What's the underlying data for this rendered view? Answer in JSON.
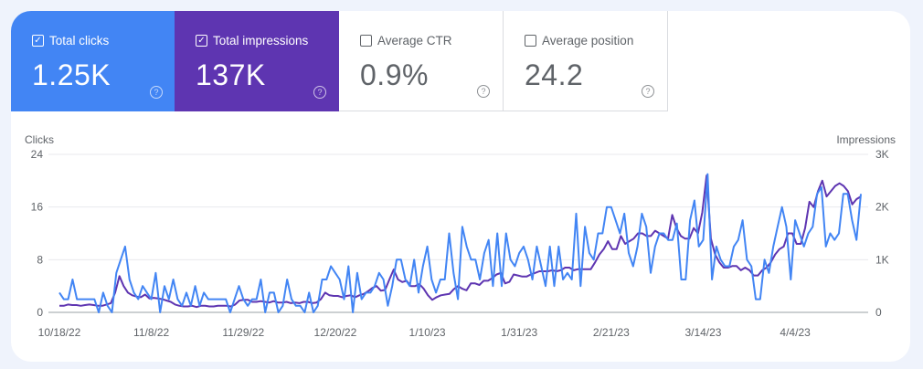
{
  "metrics": [
    {
      "label": "Total clicks",
      "value": "1.25K",
      "checked": true
    },
    {
      "label": "Total impressions",
      "value": "137K",
      "checked": true
    },
    {
      "label": "Average CTR",
      "value": "0.9%",
      "checked": false
    },
    {
      "label": "Average position",
      "value": "24.2",
      "checked": false
    }
  ],
  "icons": {
    "checked": "checkbox-checked-icon",
    "unchecked": "checkbox-empty-icon",
    "help": "help-circle-icon"
  },
  "colors": {
    "clicks": "#4285f4",
    "impressions": "#5e35b1"
  },
  "chart_data": {
    "type": "line",
    "y_left_label": "Clicks",
    "y_right_label": "Impressions",
    "y_left_ticks": [
      "0",
      "8",
      "16",
      "24"
    ],
    "y_left_range": [
      0,
      24
    ],
    "y_right_ticks": [
      "0",
      "1K",
      "2K",
      "3K"
    ],
    "y_right_range": [
      0,
      3000
    ],
    "x_ticks": [
      "10/18/22",
      "11/8/22",
      "11/29/22",
      "12/20/22",
      "1/10/23",
      "1/31/23",
      "2/21/23",
      "3/14/23",
      "4/4/23"
    ],
    "x_tick_interval_days": 21,
    "grid": true,
    "series": [
      {
        "name": "Clicks",
        "axis": "left",
        "values": [
          3,
          2,
          2,
          5,
          2,
          2,
          2,
          2,
          2,
          0,
          3,
          1,
          0,
          6,
          8,
          10,
          5,
          3,
          2,
          4,
          3,
          2,
          6,
          0,
          4,
          2,
          5,
          2,
          1,
          3,
          1,
          4,
          1,
          3,
          2,
          2,
          2,
          2,
          2,
          0,
          2,
          4,
          2,
          1,
          2,
          2,
          5,
          0,
          3,
          3,
          0,
          1,
          5,
          2,
          1,
          1,
          0,
          3,
          0,
          1,
          5,
          5,
          7,
          6,
          5,
          2,
          7,
          0,
          6,
          2,
          3,
          3,
          4,
          6,
          5,
          1,
          4,
          8,
          8,
          5,
          4,
          8,
          3,
          7,
          10,
          5,
          3,
          5,
          5,
          12,
          6,
          2,
          13,
          10,
          8,
          8,
          5,
          9,
          11,
          4,
          12,
          4,
          12,
          8,
          7,
          9,
          10,
          8,
          5,
          10,
          7,
          4,
          10,
          4,
          10,
          5,
          6,
          5,
          15,
          4,
          13,
          9,
          8,
          12,
          12,
          16,
          16,
          14,
          12,
          15,
          9,
          7,
          10,
          15,
          13,
          6,
          10,
          12,
          12,
          11,
          11,
          13.5,
          5,
          5,
          14,
          17,
          10,
          11,
          21,
          5,
          10,
          8,
          7,
          7,
          10,
          11,
          14,
          8,
          7,
          2,
          2,
          8,
          6,
          10,
          13,
          16,
          13,
          5,
          14,
          12,
          10,
          12,
          13,
          18,
          19,
          10,
          12,
          11,
          12,
          18,
          18,
          14,
          11,
          18
        ]
      },
      {
        "name": "Impressions",
        "axis": "right",
        "values": [
          125,
          125,
          150,
          138,
          138,
          125,
          138,
          150,
          138,
          125,
          125,
          150,
          175,
          375,
          688,
          500,
          375,
          325,
          300,
          288,
          338,
          263,
          275,
          263,
          250,
          225,
          200,
          150,
          125,
          113,
          113,
          125,
          100,
          125,
          125,
          113,
          113,
          125,
          125,
          125,
          113,
          150,
          225,
          238,
          238,
          200,
          200,
          213,
          200,
          188,
          213,
          188,
          188,
          200,
          175,
          188,
          175,
          200,
          200,
          175,
          188,
          250,
          375,
          325,
          313,
          313,
          288,
          313,
          325,
          288,
          325,
          350,
          400,
          463,
          500,
          413,
          425,
          625,
          813,
          625,
          575,
          600,
          500,
          500,
          538,
          450,
          325,
          238,
          288,
          325,
          338,
          350,
          438,
          500,
          450,
          420,
          550,
          550,
          520,
          600,
          600,
          650,
          720,
          750,
          550,
          580,
          720,
          700,
          680,
          680,
          720,
          750,
          780,
          780,
          780,
          800,
          780,
          800,
          850,
          850,
          800,
          820,
          820,
          820,
          820,
          950,
          1100,
          1200,
          1350,
          1200,
          1200,
          1450,
          1300,
          1350,
          1400,
          1500,
          1500,
          1450,
          1450,
          1550,
          1500,
          1450,
          1400,
          1850,
          1600,
          1450,
          1400,
          1400,
          1600,
          1500,
          1900,
          2600,
          1400,
          1100,
          950,
          850,
          850,
          880,
          880,
          800,
          850,
          800,
          700,
          700,
          800,
          850,
          950,
          1100,
          1200,
          1250,
          1500,
          1500,
          1300,
          1300,
          1600,
          2100,
          2000,
          2300,
          2500,
          2200,
          2300,
          2400,
          2450,
          2400,
          2300,
          2050,
          2150,
          2200
        ]
      }
    ]
  }
}
